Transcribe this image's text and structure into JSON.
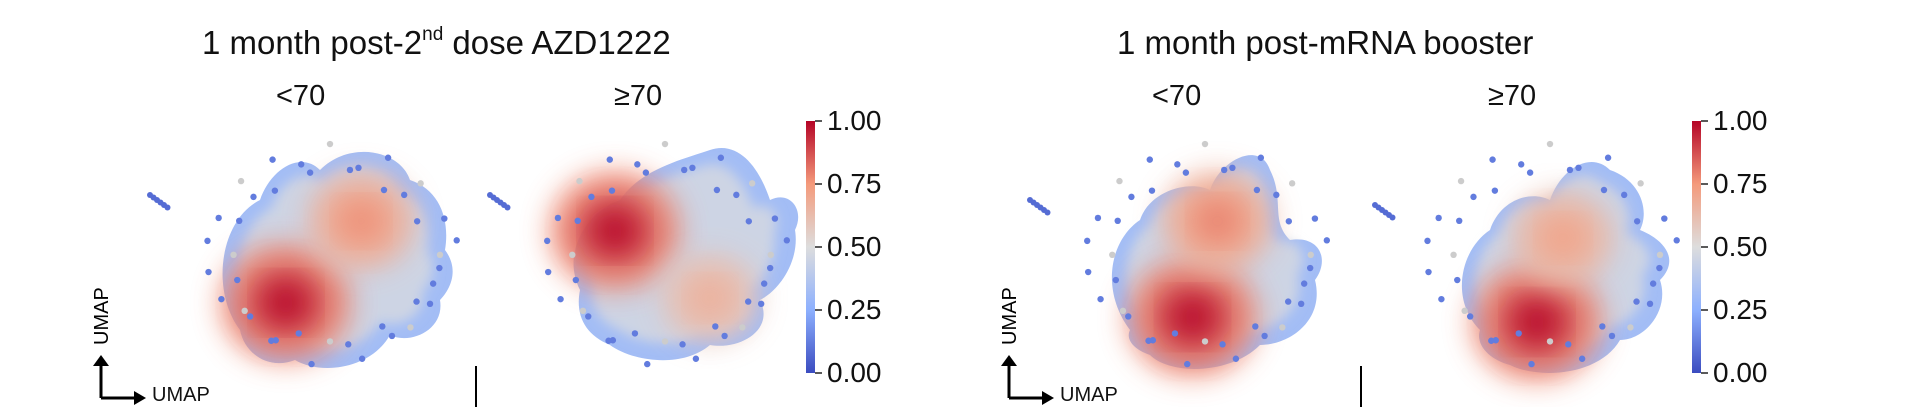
{
  "panels": [
    {
      "title_pre": "1 month post-2",
      "title_sup": "nd",
      "title_post": " dose AZD1222",
      "groups": [
        "<70",
        "≥70"
      ]
    },
    {
      "title": "1 month post-mRNA booster",
      "groups": [
        "<70",
        "≥70"
      ]
    }
  ],
  "axis_label": "UMAP",
  "colorbar": {
    "ticks": [
      "1.00",
      "0.75",
      "0.50",
      "0.25",
      "0.00"
    ],
    "colormap": "coolwarm",
    "low_color": "#3b4cc0",
    "mid_color": "#dddddd",
    "high_color": "#b40426"
  },
  "chart_data": [
    {
      "type": "heatmap",
      "title": "1 month post-2nd dose AZD1222",
      "series": [
        {
          "name": "<70",
          "peaks": [
            {
              "x": 0.33,
              "y": 0.28,
              "density": 1.0
            },
            {
              "x": 0.62,
              "y": 0.62,
              "density": 0.55
            }
          ]
        },
        {
          "name": "≥70",
          "peaks": [
            {
              "x": 0.3,
              "y": 0.58,
              "density": 1.0
            },
            {
              "x": 0.68,
              "y": 0.3,
              "density": 0.35
            }
          ]
        }
      ],
      "zlim": [
        0,
        1
      ],
      "xlabel": "UMAP",
      "ylabel": "UMAP"
    },
    {
      "type": "heatmap",
      "title": "1 month post-mRNA booster",
      "series": [
        {
          "name": "<70",
          "peaks": [
            {
              "x": 0.45,
              "y": 0.22,
              "density": 1.0
            },
            {
              "x": 0.55,
              "y": 0.62,
              "density": 0.6
            }
          ]
        },
        {
          "name": "≥70",
          "peaks": [
            {
              "x": 0.45,
              "y": 0.2,
              "density": 1.0
            },
            {
              "x": 0.55,
              "y": 0.55,
              "density": 0.45
            }
          ]
        }
      ],
      "zlim": [
        0,
        1
      ],
      "xlabel": "UMAP",
      "ylabel": "UMAP"
    }
  ]
}
